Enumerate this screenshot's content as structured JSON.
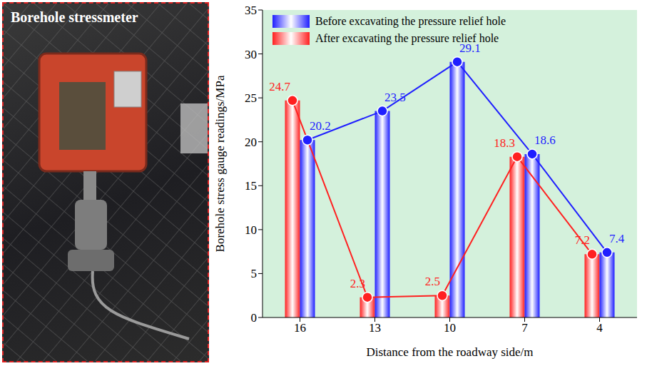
{
  "image_panel": {
    "label": "Borehole stressmeter"
  },
  "chart_data": {
    "type": "bar",
    "x_label": "Distance from the roadway side/m",
    "y_label": "Borehole stress gauge readings/MPa",
    "categories": [
      "16",
      "13",
      "10",
      "7",
      "4"
    ],
    "series": [
      {
        "name": "Before excavating the pressure relief hole",
        "color": "#1f1fff",
        "values": [
          20.2,
          23.5,
          29.1,
          18.6,
          7.4
        ],
        "marker": "circle",
        "line_style": "solid"
      },
      {
        "name": "After excavating the pressure relief hole",
        "color": "#ff2020",
        "values": [
          24.7,
          2.3,
          2.5,
          18.3,
          7.2
        ],
        "marker": "circle",
        "line_style": "solid"
      }
    ],
    "ylim": [
      0,
      35
    ],
    "yticks": [
      0,
      5,
      10,
      15,
      20,
      25,
      30,
      35
    ],
    "grid": false,
    "legend": "upper left",
    "data_labels": true
  }
}
